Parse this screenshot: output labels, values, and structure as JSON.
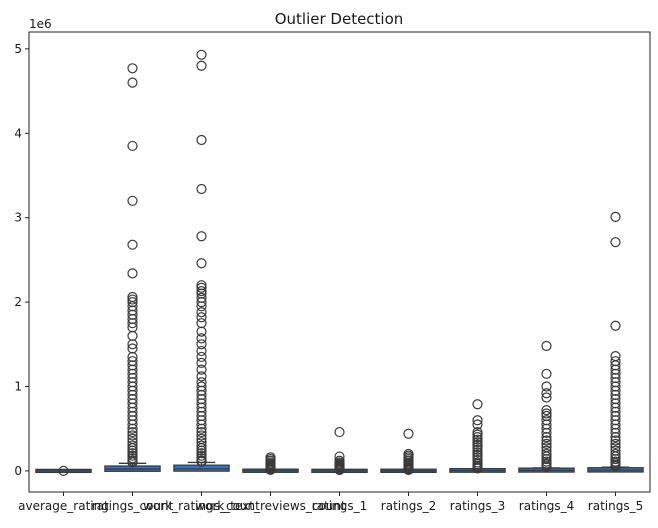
{
  "chart_data": {
    "type": "box",
    "title": "Outlier Detection",
    "xlabel": "",
    "ylabel": "",
    "y_offset_label": "1e6",
    "ylim": [
      -0.25,
      5.2
    ],
    "yticks": [
      0,
      1,
      2,
      3,
      4,
      5
    ],
    "grid": false,
    "legend": "none",
    "box_color": "#3b73c4",
    "line_color": "#3a3a3a",
    "categories": [
      "average_rating",
      "ratings_count",
      "work_ratings_count",
      "work_text_reviews_count",
      "ratings_1",
      "ratings_2",
      "ratings_3",
      "ratings_4",
      "ratings_5"
    ],
    "series": [
      {
        "category": "average_rating",
        "q1": 0.0,
        "median": 0.0,
        "q3": 0.0,
        "whisker_low": 0.0,
        "whisker_high": 0.0,
        "outliers": [
          0.0
        ]
      },
      {
        "category": "ratings_count",
        "q1": 0.013,
        "median": 0.022,
        "q3": 0.04,
        "whisker_low": 0.002,
        "whisker_high": 0.09,
        "outliers": [
          4.77,
          4.6,
          3.85,
          3.2,
          2.68,
          2.34,
          2.06,
          2.03,
          2.0,
          1.95,
          1.9,
          1.85,
          1.8,
          1.75,
          1.7,
          1.6,
          1.5,
          1.45,
          1.35,
          1.3,
          1.25,
          1.2,
          1.15,
          1.1,
          1.05,
          1.0,
          0.95,
          0.9,
          0.85,
          0.8,
          0.75,
          0.7,
          0.65,
          0.6,
          0.55,
          0.5,
          0.46,
          0.42,
          0.38,
          0.34,
          0.3,
          0.27,
          0.24,
          0.21,
          0.18,
          0.15,
          0.12,
          0.1
        ]
      },
      {
        "category": "work_ratings_count",
        "q1": 0.015,
        "median": 0.024,
        "q3": 0.05,
        "whisker_low": 0.003,
        "whisker_high": 0.1,
        "outliers": [
          4.93,
          4.8,
          3.92,
          3.34,
          2.78,
          2.46,
          2.2,
          2.17,
          2.13,
          2.1,
          2.05,
          2.0,
          1.95,
          1.88,
          1.82,
          1.75,
          1.65,
          1.57,
          1.5,
          1.42,
          1.35,
          1.28,
          1.2,
          1.12,
          1.05,
          1.0,
          0.95,
          0.9,
          0.85,
          0.8,
          0.75,
          0.7,
          0.65,
          0.6,
          0.55,
          0.5,
          0.46,
          0.42,
          0.38,
          0.34,
          0.3,
          0.27,
          0.24,
          0.21,
          0.18,
          0.15,
          0.12,
          0.11
        ]
      },
      {
        "category": "work_text_reviews_count",
        "q1": 0.001,
        "median": 0.0015,
        "q3": 0.003,
        "whisker_low": 0.0,
        "whisker_high": 0.006,
        "outliers": [
          0.16,
          0.14,
          0.12,
          0.1,
          0.085,
          0.07,
          0.06,
          0.05,
          0.04,
          0.03,
          0.02,
          0.012
        ]
      },
      {
        "category": "ratings_1",
        "q1": 0.0002,
        "median": 0.0005,
        "q3": 0.0012,
        "whisker_low": 0.0,
        "whisker_high": 0.003,
        "outliers": [
          0.46,
          0.17,
          0.12,
          0.1,
          0.085,
          0.07,
          0.06,
          0.05,
          0.04,
          0.03,
          0.02,
          0.01
        ]
      },
      {
        "category": "ratings_2",
        "q1": 0.0005,
        "median": 0.001,
        "q3": 0.0025,
        "whisker_low": 0.0,
        "whisker_high": 0.006,
        "outliers": [
          0.44,
          0.2,
          0.18,
          0.16,
          0.14,
          0.12,
          0.1,
          0.085,
          0.07,
          0.055,
          0.04,
          0.03,
          0.02,
          0.01
        ]
      },
      {
        "category": "ratings_3",
        "q1": 0.002,
        "median": 0.004,
        "q3": 0.009,
        "whisker_low": 0.0,
        "whisker_high": 0.02,
        "outliers": [
          0.79,
          0.6,
          0.55,
          0.46,
          0.43,
          0.4,
          0.37,
          0.34,
          0.31,
          0.28,
          0.25,
          0.22,
          0.19,
          0.16,
          0.13,
          0.1,
          0.08,
          0.06,
          0.045,
          0.03
        ]
      },
      {
        "category": "ratings_4",
        "q1": 0.004,
        "median": 0.007,
        "q3": 0.015,
        "whisker_low": 0.0,
        "whisker_high": 0.035,
        "outliers": [
          1.48,
          1.15,
          1.0,
          0.92,
          0.87,
          0.72,
          0.68,
          0.65,
          0.6,
          0.55,
          0.5,
          0.45,
          0.4,
          0.36,
          0.32,
          0.28,
          0.24,
          0.2,
          0.17,
          0.14,
          0.11,
          0.085,
          0.065,
          0.05
        ]
      },
      {
        "category": "ratings_5",
        "q1": 0.005,
        "median": 0.009,
        "q3": 0.02,
        "whisker_low": 0.0,
        "whisker_high": 0.045,
        "outliers": [
          3.01,
          2.71,
          1.72,
          1.36,
          1.3,
          1.25,
          1.2,
          1.15,
          1.1,
          1.05,
          1.0,
          0.95,
          0.9,
          0.85,
          0.8,
          0.75,
          0.7,
          0.65,
          0.6,
          0.55,
          0.5,
          0.45,
          0.4,
          0.36,
          0.32,
          0.28,
          0.24,
          0.2,
          0.17,
          0.14,
          0.11,
          0.09,
          0.07,
          0.055
        ]
      }
    ]
  }
}
